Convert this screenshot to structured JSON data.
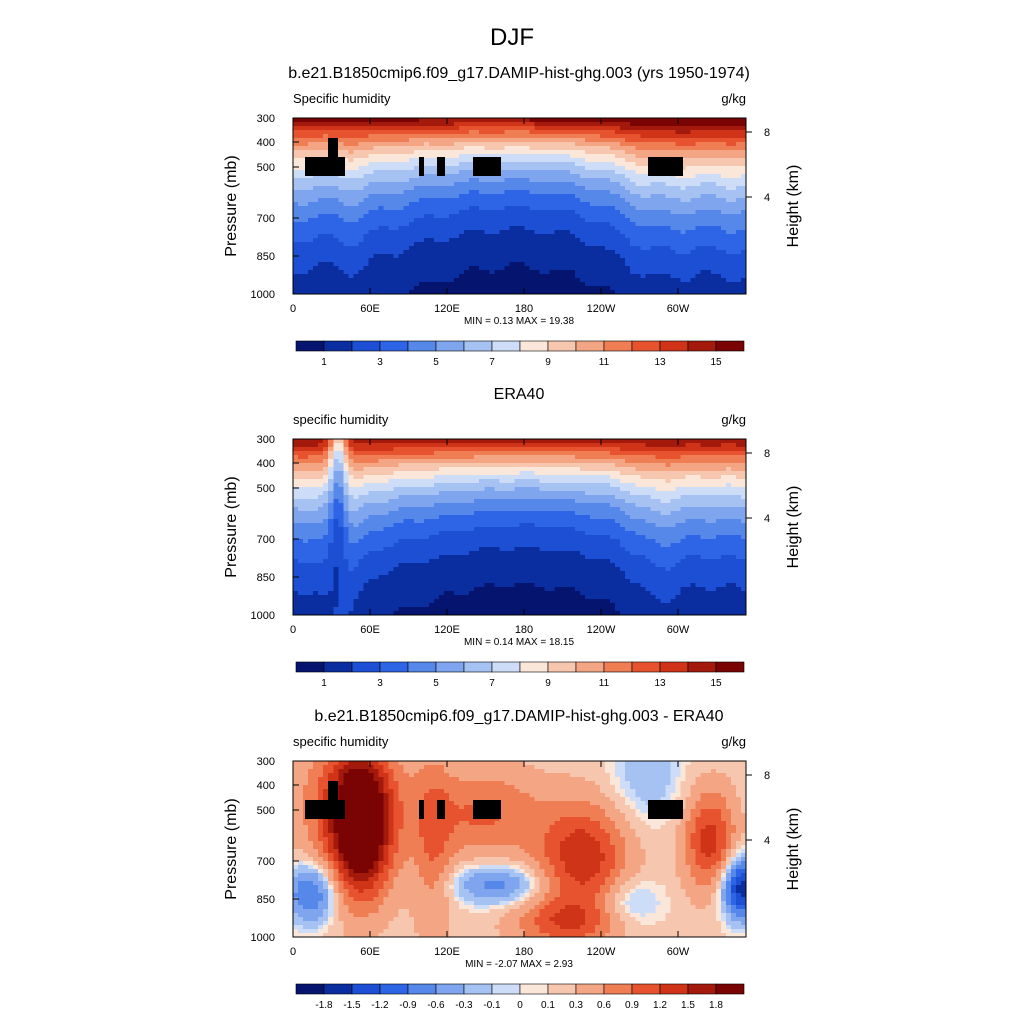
{
  "figure": {
    "title": "DJF"
  },
  "chart_data": [
    {
      "type": "heatmap",
      "title": "b.e21.B1850cmip6.f09_g17.DAMIP-hist-ghg.003 (yrs 1950-1974)",
      "left_label": "Specific humidity",
      "right_label": "g/kg",
      "xlabel": "",
      "ylabel": "Pressure (mb)",
      "y2label": "Height (km)",
      "xticks": [
        "0",
        "60E",
        "120E",
        "180",
        "120W",
        "60W"
      ],
      "yticks": [
        "300",
        "400",
        "500",
        "700",
        "850",
        "1000"
      ],
      "y2ticks": [
        "8",
        "4"
      ],
      "xlim": [
        0,
        360
      ],
      "ylim": [
        1000,
        300
      ],
      "stats": "MIN =   0.13  MAX =  19.38",
      "colorbar": {
        "levels": [
          0.5,
          1,
          2,
          3,
          4,
          5,
          6,
          7,
          8,
          9,
          10,
          11,
          12,
          13,
          14,
          15
        ],
        "labels": [
          "1",
          "3",
          "5",
          "7",
          "9",
          "11",
          "13",
          "15"
        ],
        "colors": [
          "#05146f",
          "#0a2ea0",
          "#1c4fd4",
          "#2e64e6",
          "#5588e8",
          "#7ea5ee",
          "#a5c2f2",
          "#cdddf7",
          "#fbe7da",
          "#f7c6ae",
          "#f4a583",
          "#ef7e55",
          "#e8532f",
          "#cf3418",
          "#a31a0c",
          "#7a0403"
        ]
      },
      "field": "model"
    },
    {
      "type": "heatmap",
      "title": "ERA40",
      "left_label": "specific humidity",
      "right_label": "g/kg",
      "xlabel": "",
      "ylabel": "Pressure (mb)",
      "y2label": "Height (km)",
      "xticks": [
        "0",
        "60E",
        "120E",
        "180",
        "120W",
        "60W"
      ],
      "yticks": [
        "300",
        "400",
        "500",
        "700",
        "850",
        "1000"
      ],
      "y2ticks": [
        "8",
        "4"
      ],
      "xlim": [
        0,
        360
      ],
      "ylim": [
        1000,
        300
      ],
      "stats": "MIN =   0.14  MAX =  18.15",
      "colorbar": {
        "levels": [
          0.5,
          1,
          2,
          3,
          4,
          5,
          6,
          7,
          8,
          9,
          10,
          11,
          12,
          13,
          14,
          15
        ],
        "labels": [
          "1",
          "3",
          "5",
          "7",
          "9",
          "11",
          "13",
          "15"
        ],
        "colors": [
          "#05146f",
          "#0a2ea0",
          "#1c4fd4",
          "#2e64e6",
          "#5588e8",
          "#7ea5ee",
          "#a5c2f2",
          "#cdddf7",
          "#fbe7da",
          "#f7c6ae",
          "#f4a583",
          "#ef7e55",
          "#e8532f",
          "#cf3418",
          "#a31a0c",
          "#7a0403"
        ]
      },
      "field": "obs"
    },
    {
      "type": "heatmap",
      "title": "b.e21.B1850cmip6.f09_g17.DAMIP-hist-ghg.003 - ERA40",
      "left_label": "specific humidity",
      "right_label": "g/kg",
      "xlabel": "",
      "ylabel": "Pressure (mb)",
      "y2label": "Height (km)",
      "xticks": [
        "0",
        "60E",
        "120E",
        "180",
        "120W",
        "60W"
      ],
      "yticks": [
        "300",
        "400",
        "500",
        "700",
        "850",
        "1000"
      ],
      "y2ticks": [
        "8",
        "4"
      ],
      "xlim": [
        0,
        360
      ],
      "ylim": [
        1000,
        300
      ],
      "stats": "MIN =  -2.07  MAX =   2.93",
      "colorbar": {
        "levels": [
          -2.0,
          -1.8,
          -1.5,
          -1.2,
          -0.9,
          -0.6,
          -0.3,
          -0.1,
          0,
          0.1,
          0.3,
          0.6,
          0.9,
          1.2,
          1.5,
          1.8
        ],
        "labels": [
          "-1.8",
          "-1.5",
          "-1.2",
          "-0.9",
          "-0.6",
          "-0.3",
          "-0.1",
          "0",
          "0.1",
          "0.3",
          "0.6",
          "0.9",
          "1.2",
          "1.5",
          "1.8"
        ],
        "colors": [
          "#05146f",
          "#0a2ea0",
          "#1c4fd4",
          "#2e64e6",
          "#5588e8",
          "#7ea5ee",
          "#a5c2f2",
          "#cdddf7",
          "#fbe7da",
          "#f7c6ae",
          "#f4a583",
          "#ef7e55",
          "#e8532f",
          "#cf3418",
          "#a31a0c",
          "#7a0403"
        ]
      },
      "field": "diff"
    }
  ]
}
